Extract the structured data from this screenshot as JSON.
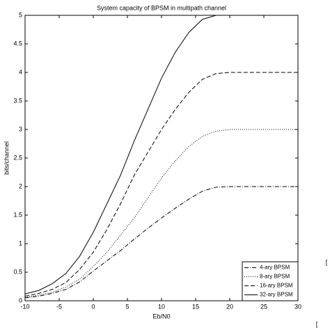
{
  "chart_data": {
    "type": "line",
    "title": "System capacity of BPSM in multipath channel",
    "x_label": "Eb/N0",
    "y_label": "bits/channel",
    "x": [
      -10,
      -8,
      -6,
      -4,
      -2,
      0,
      2,
      4,
      6,
      8,
      10,
      12,
      14,
      16,
      18,
      20,
      22,
      24,
      26,
      28,
      30
    ],
    "series": [
      {
        "name": "4-ary BPSM",
        "color": "#000000",
        "dash": "dashdot",
        "values": [
          0.05,
          0.08,
          0.13,
          0.2,
          0.33,
          0.52,
          0.7,
          0.88,
          1.08,
          1.27,
          1.45,
          1.62,
          1.78,
          1.92,
          1.99,
          2.0,
          2.0,
          2.0,
          2.0,
          2.0,
          2.0
        ]
      },
      {
        "name": "8-ary BPSM",
        "color": "#000000",
        "dash": "dotted",
        "values": [
          0.06,
          0.1,
          0.15,
          0.24,
          0.38,
          0.6,
          0.85,
          1.15,
          1.45,
          1.8,
          2.15,
          2.45,
          2.7,
          2.88,
          2.97,
          3.0,
          3.0,
          3.0,
          3.0,
          3.0,
          3.0
        ]
      },
      {
        "name": "16-ary BPSM",
        "color": "#000000",
        "dash": "dashed",
        "values": [
          0.08,
          0.13,
          0.2,
          0.32,
          0.55,
          0.85,
          1.25,
          1.7,
          2.2,
          2.6,
          3.0,
          3.35,
          3.65,
          3.88,
          3.98,
          4.0,
          4.0,
          4.0,
          4.0,
          4.0,
          4.0
        ]
      },
      {
        "name": "32-ary BPSM",
        "color": "#000000",
        "dash": "solid",
        "values": [
          0.12,
          0.18,
          0.3,
          0.48,
          0.78,
          1.2,
          1.7,
          2.2,
          2.8,
          3.35,
          3.9,
          4.35,
          4.7,
          4.93,
          5.0,
          5.0,
          5.0,
          5.0,
          5.0,
          5.0,
          5.0
        ]
      }
    ],
    "xlim": [
      -10,
      30
    ],
    "xticks": [
      -10,
      -5,
      0,
      5,
      10,
      15,
      20,
      25,
      30
    ],
    "ylim": [
      0,
      5
    ],
    "yticks": [
      0,
      0.5,
      1,
      1.5,
      2,
      2.5,
      3,
      3.5,
      4,
      4.5,
      5
    ],
    "grid": false,
    "legend": "lower right",
    "annotations": [
      "[",
      "["
    ]
  }
}
